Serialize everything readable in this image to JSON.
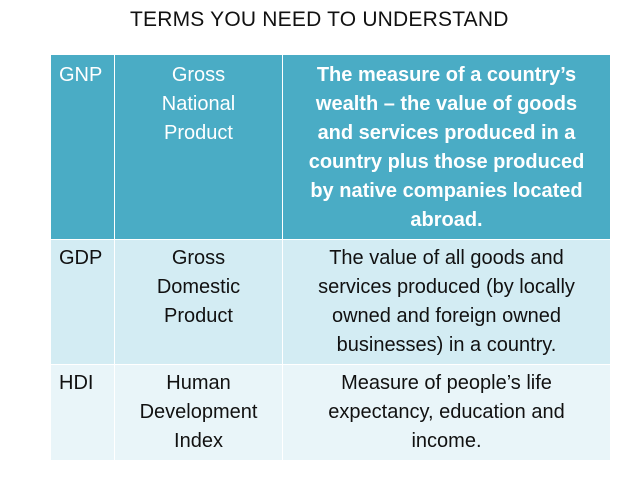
{
  "slide": {
    "title": "TERMS YOU NEED TO UNDERSTAND"
  },
  "table": {
    "rows": [
      {
        "abbr": "GNP",
        "full": "Gross\nNational\nProduct",
        "definition": "The measure of a country’s\nwealth – the value of goods\nand services produced in a\ncountry plus those produced\nby native companies located\nabroad."
      },
      {
        "abbr": "GDP",
        "full": "Gross\nDomestic\nProduct",
        "definition": "The value of all goods and\nservices produced (by locally\nowned and foreign owned\nbusinesses) in a country."
      },
      {
        "abbr": "HDI",
        "full": "Human\nDevelopment\nIndex",
        "definition": "Measure of people’s life\nexpectancy, education and\nincome."
      }
    ]
  },
  "colors": {
    "header_fill": "#4aacc5",
    "row_fill_1": "#d3ecf3",
    "row_fill_2": "#e9f5f9",
    "header_text": "#ffffff",
    "body_text": "#111111"
  }
}
